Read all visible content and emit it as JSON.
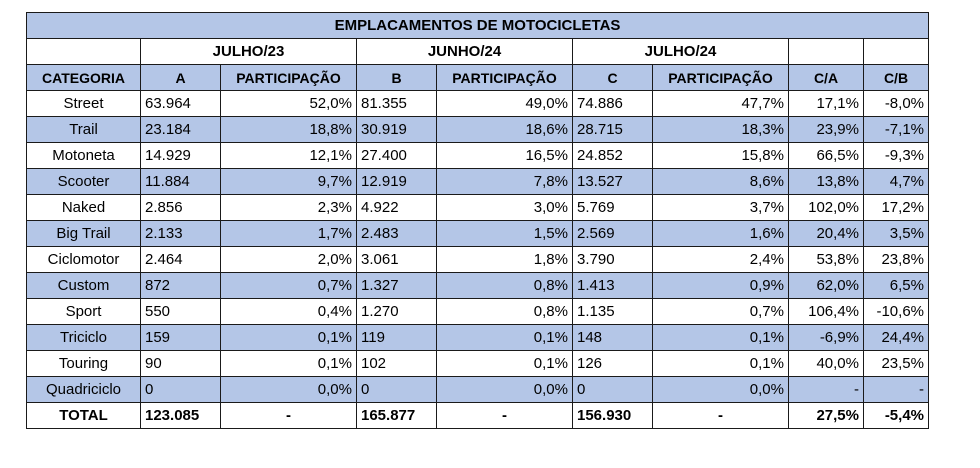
{
  "title": "EMPLACAMENTOS DE MOTOCICLETAS",
  "periods": [
    "JULHO/23",
    "JUNHO/24",
    "JULHO/24"
  ],
  "columns": [
    "CATEGORIA",
    "A",
    "PARTICIPAÇÃO",
    "B",
    "PARTICIPAÇÃO",
    "C",
    "PARTICIPAÇÃO",
    "C/A",
    "C/B"
  ],
  "rows": [
    {
      "categoria": "Street",
      "a": "63.964",
      "pa": "52,0%",
      "b": "81.355",
      "pb": "49,0%",
      "c": "74.886",
      "pc": "47,7%",
      "ca": "17,1%",
      "cb": "-8,0%"
    },
    {
      "categoria": "Trail",
      "a": "23.184",
      "pa": "18,8%",
      "b": "30.919",
      "pb": "18,6%",
      "c": "28.715",
      "pc": "18,3%",
      "ca": "23,9%",
      "cb": "-7,1%"
    },
    {
      "categoria": "Motoneta",
      "a": "14.929",
      "pa": "12,1%",
      "b": "27.400",
      "pb": "16,5%",
      "c": "24.852",
      "pc": "15,8%",
      "ca": "66,5%",
      "cb": "-9,3%"
    },
    {
      "categoria": "Scooter",
      "a": "11.884",
      "pa": "9,7%",
      "b": "12.919",
      "pb": "7,8%",
      "c": "13.527",
      "pc": "8,6%",
      "ca": "13,8%",
      "cb": "4,7%"
    },
    {
      "categoria": "Naked",
      "a": "2.856",
      "pa": "2,3%",
      "b": "4.922",
      "pb": "3,0%",
      "c": "5.769",
      "pc": "3,7%",
      "ca": "102,0%",
      "cb": "17,2%"
    },
    {
      "categoria": "Big Trail",
      "a": "2.133",
      "pa": "1,7%",
      "b": "2.483",
      "pb": "1,5%",
      "c": "2.569",
      "pc": "1,6%",
      "ca": "20,4%",
      "cb": "3,5%"
    },
    {
      "categoria": "Ciclomotor",
      "a": "2.464",
      "pa": "2,0%",
      "b": "3.061",
      "pb": "1,8%",
      "c": "3.790",
      "pc": "2,4%",
      "ca": "53,8%",
      "cb": "23,8%"
    },
    {
      "categoria": "Custom",
      "a": "872",
      "pa": "0,7%",
      "b": "1.327",
      "pb": "0,8%",
      "c": "1.413",
      "pc": "0,9%",
      "ca": "62,0%",
      "cb": "6,5%"
    },
    {
      "categoria": "Sport",
      "a": "550",
      "pa": "0,4%",
      "b": "1.270",
      "pb": "0,8%",
      "c": "1.135",
      "pc": "0,7%",
      "ca": "106,4%",
      "cb": "-10,6%"
    },
    {
      "categoria": "Triciclo",
      "a": "159",
      "pa": "0,1%",
      "b": "119",
      "pb": "0,1%",
      "c": "148",
      "pc": "0,1%",
      "ca": "-6,9%",
      "cb": "24,4%"
    },
    {
      "categoria": "Touring",
      "a": "90",
      "pa": "0,1%",
      "b": "102",
      "pb": "0,1%",
      "c": "126",
      "pc": "0,1%",
      "ca": "40,0%",
      "cb": "23,5%"
    },
    {
      "categoria": "Quadriciclo",
      "a": "0",
      "pa": "0,0%",
      "b": "0",
      "pb": "0,0%",
      "c": "0",
      "pc": "0,0%",
      "ca": "-",
      "cb": "-"
    }
  ],
  "total": {
    "categoria": "TOTAL",
    "a": "123.085",
    "pa": "-",
    "b": "165.877",
    "pb": "-",
    "c": "156.930",
    "pc": "-",
    "ca": "27,5%",
    "cb": "-5,4%"
  },
  "colors": {
    "header_blue": "#b4c6e7",
    "border": "#1a1a1a"
  }
}
